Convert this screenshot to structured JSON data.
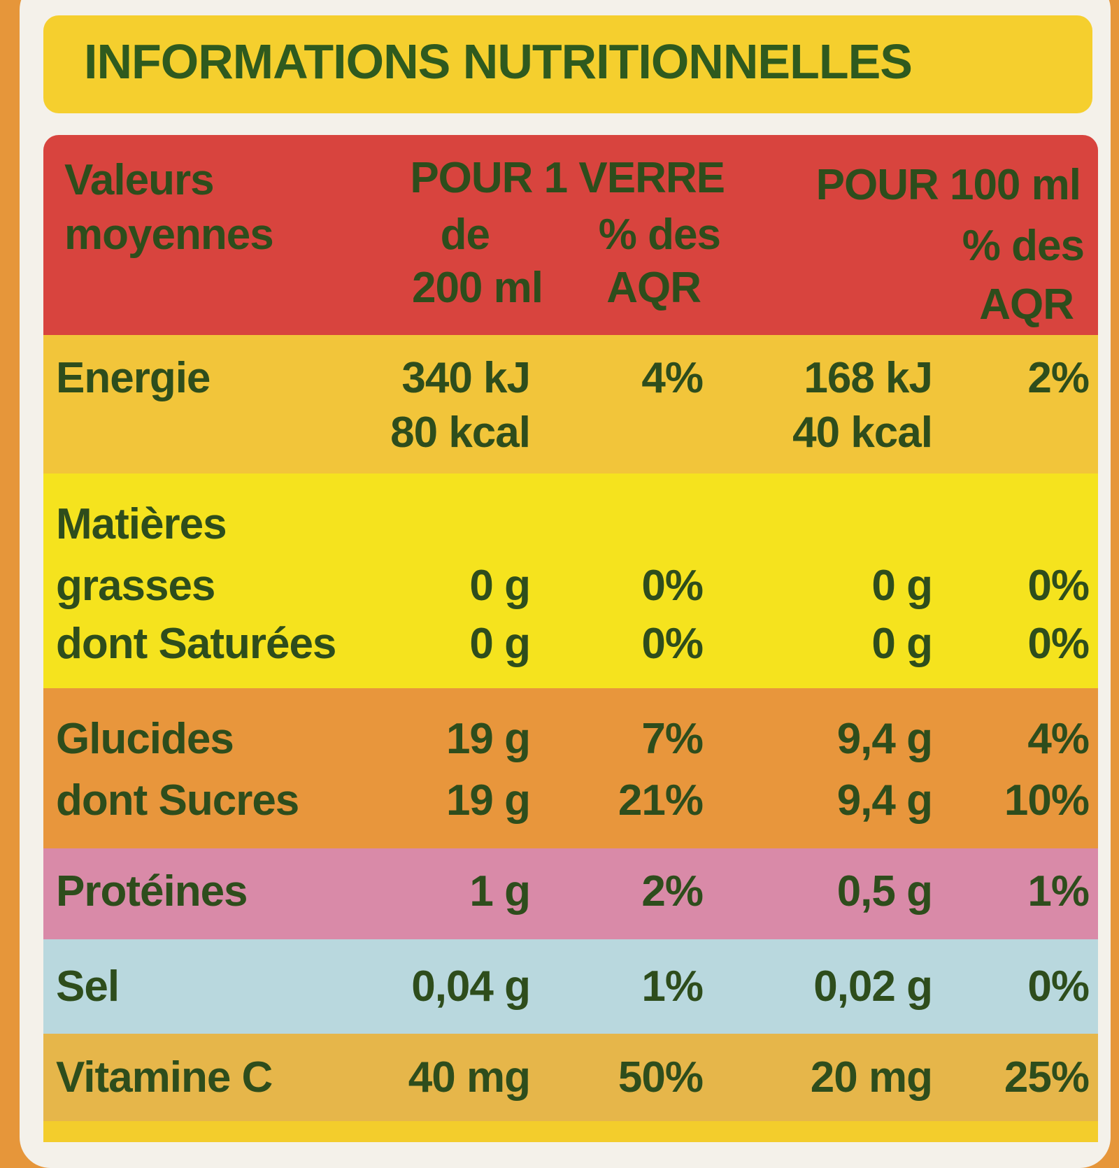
{
  "title": "INFORMATIONS NUTRITIONNELLES",
  "header": {
    "label": [
      "Valeurs",
      "moyennes"
    ],
    "per_glass": "POUR 1 VERRE",
    "glass_amount": [
      "de",
      "200 ml"
    ],
    "glass_aqr": [
      "% des",
      "AQR"
    ],
    "per_100": "POUR 100 ml",
    "aqr_100": [
      "% des",
      "AQR"
    ]
  },
  "rows": [
    {
      "label": "Energie",
      "glass": "340 kJ",
      "glass_aqr": "4%",
      "per100": "168 kJ",
      "aqr100": "2%"
    },
    {
      "glass": "80 kcal",
      "per100": "40 kcal"
    },
    {
      "label": "Matières"
    },
    {
      "label": "grasses",
      "glass": "0 g",
      "glass_aqr": "0%",
      "per100": "0 g",
      "aqr100": "0%"
    },
    {
      "label": "dont Saturées",
      "glass": "0 g",
      "glass_aqr": "0%",
      "per100": "0 g",
      "aqr100": "0%"
    },
    {
      "label": "Glucides",
      "glass": "19 g",
      "glass_aqr": "7%",
      "per100": "9,4 g",
      "aqr100": "4%"
    },
    {
      "label": "dont Sucres",
      "glass": "19 g",
      "glass_aqr": "21%",
      "per100": "9,4 g",
      "aqr100": "10%"
    },
    {
      "label": "Protéines",
      "glass": "1 g",
      "glass_aqr": "2%",
      "per100": "0,5 g",
      "aqr100": "1%"
    },
    {
      "label": "Sel",
      "glass": "0,04 g",
      "glass_aqr": "1%",
      "per100": "0,02 g",
      "aqr100": "0%"
    },
    {
      "label": "Vitamine C",
      "glass": "40 mg",
      "glass_aqr": "50%",
      "per100": "20 mg",
      "aqr100": "25%"
    }
  ]
}
